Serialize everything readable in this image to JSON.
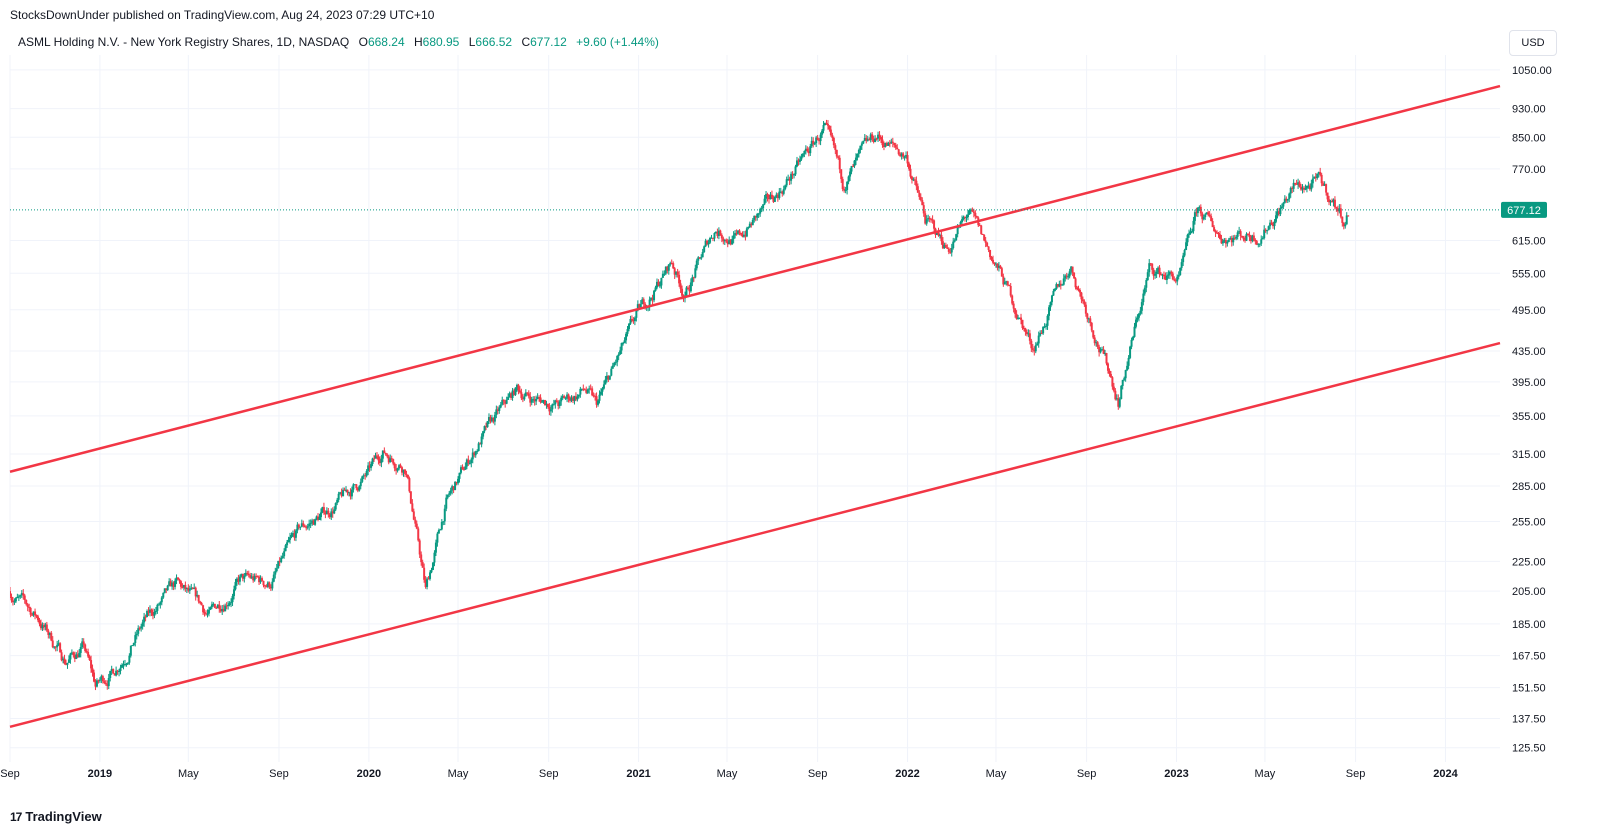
{
  "header": {
    "publish_line": "StocksDownUnder published on TradingView.com, Aug 24, 2023 07:29 UTC+10",
    "symbol": "ASML Holding N.V. - New York Registry Shares, 1D, NASDAQ",
    "o_label": "O",
    "o_value": "668.24",
    "h_label": "H",
    "h_value": "680.95",
    "l_label": "L",
    "l_value": "666.52",
    "c_label": "C",
    "c_value": "677.12",
    "change": "+9.60 (+1.44%)",
    "currency": "USD"
  },
  "footer": {
    "brand": "TradingView",
    "brand_icon": "17"
  },
  "colors": {
    "up": "#089981",
    "down": "#f23645",
    "channel": "#f23645",
    "grid": "#f0f3fa",
    "last_price": "#089981"
  },
  "chart_data": {
    "type": "candlestick",
    "title": "ASML Holding N.V. - New York Registry Shares, 1D, NASDAQ",
    "scale": "log",
    "ylim": [
      120,
      1100
    ],
    "y_ticks": [
      1050,
      930,
      850,
      770,
      615,
      555,
      495,
      435,
      395,
      355,
      315,
      285,
      255,
      225,
      205,
      185,
      167.5,
      151.5,
      137.5,
      125.5
    ],
    "y_tick_labels": [
      "1050.00",
      "930.00",
      "850.00",
      "770.00",
      "615.00",
      "555.00",
      "495.00",
      "435.00",
      "395.00",
      "355.00",
      "315.00",
      "285.00",
      "255.00",
      "225.00",
      "205.00",
      "185.00",
      "167.50",
      "151.50",
      "137.50",
      "125.50"
    ],
    "x_range": [
      "2018-09-01",
      "2024-03-15"
    ],
    "x_ticks": [
      {
        "date": "2018-09-01",
        "label": "Sep",
        "bold": false
      },
      {
        "date": "2019-01-01",
        "label": "2019",
        "bold": true
      },
      {
        "date": "2019-05-01",
        "label": "May",
        "bold": false
      },
      {
        "date": "2019-09-01",
        "label": "Sep",
        "bold": false
      },
      {
        "date": "2020-01-01",
        "label": "2020",
        "bold": true
      },
      {
        "date": "2020-05-01",
        "label": "May",
        "bold": false
      },
      {
        "date": "2020-09-01",
        "label": "Sep",
        "bold": false
      },
      {
        "date": "2021-01-01",
        "label": "2021",
        "bold": true
      },
      {
        "date": "2021-05-01",
        "label": "May",
        "bold": false
      },
      {
        "date": "2021-09-01",
        "label": "Sep",
        "bold": false
      },
      {
        "date": "2022-01-01",
        "label": "2022",
        "bold": true
      },
      {
        "date": "2022-05-01",
        "label": "May",
        "bold": false
      },
      {
        "date": "2022-09-01",
        "label": "Sep",
        "bold": false
      },
      {
        "date": "2023-01-01",
        "label": "2023",
        "bold": true
      },
      {
        "date": "2023-05-01",
        "label": "May",
        "bold": false
      },
      {
        "date": "2023-09-01",
        "label": "Sep",
        "bold": false
      },
      {
        "date": "2024-01-01",
        "label": "2024",
        "bold": true
      }
    ],
    "price_path": [
      [
        "2018-09-01",
        205
      ],
      [
        "2018-10-10",
        188
      ],
      [
        "2018-11-15",
        165
      ],
      [
        "2018-12-10",
        172
      ],
      [
        "2018-12-26",
        152
      ],
      [
        "2019-01-20",
        160
      ],
      [
        "2019-03-01",
        185
      ],
      [
        "2019-04-15",
        208
      ],
      [
        "2019-05-30",
        190
      ],
      [
        "2019-07-10",
        212
      ],
      [
        "2019-08-20",
        210
      ],
      [
        "2019-09-30",
        248
      ],
      [
        "2019-11-10",
        265
      ],
      [
        "2019-12-31",
        295
      ],
      [
        "2020-01-20",
        318
      ],
      [
        "2020-02-20",
        305
      ],
      [
        "2020-03-18",
        205
      ],
      [
        "2020-04-15",
        270
      ],
      [
        "2020-06-01",
        330
      ],
      [
        "2020-07-20",
        385
      ],
      [
        "2020-08-10",
        375
      ],
      [
        "2020-09-15",
        368
      ],
      [
        "2020-10-20",
        385
      ],
      [
        "2020-11-05",
        365
      ],
      [
        "2020-12-31",
        485
      ],
      [
        "2021-02-15",
        575
      ],
      [
        "2021-03-05",
        520
      ],
      [
        "2021-04-15",
        640
      ],
      [
        "2021-05-15",
        615
      ],
      [
        "2021-06-30",
        695
      ],
      [
        "2021-07-30",
        760
      ],
      [
        "2021-09-10",
        870
      ],
      [
        "2021-10-05",
        735
      ],
      [
        "2021-11-20",
        850
      ],
      [
        "2021-12-31",
        800
      ],
      [
        "2022-01-25",
        655
      ],
      [
        "2022-02-25",
        600
      ],
      [
        "2022-03-25",
        670
      ],
      [
        "2022-05-10",
        545
      ],
      [
        "2022-06-20",
        440
      ],
      [
        "2022-08-10",
        570
      ],
      [
        "2022-09-10",
        470
      ],
      [
        "2022-10-14",
        375
      ],
      [
        "2022-11-25",
        560
      ],
      [
        "2023-01-05",
        545
      ],
      [
        "2023-01-30",
        675
      ],
      [
        "2023-03-01",
        625
      ],
      [
        "2023-04-25",
        630
      ],
      [
        "2023-06-10",
        725
      ],
      [
        "2023-07-15",
        735
      ],
      [
        "2023-08-18",
        655
      ],
      [
        "2023-08-23",
        677.12
      ]
    ],
    "channel_lines": [
      {
        "name": "upper",
        "points": [
          [
            "2018-09-01",
            298
          ],
          [
            "2024-03-15",
            998
          ]
        ]
      },
      {
        "name": "lower",
        "points": [
          [
            "2018-09-01",
            134
          ],
          [
            "2024-03-15",
            446
          ]
        ]
      }
    ],
    "last_price": 677.12,
    "last_price_label": "677.12"
  }
}
